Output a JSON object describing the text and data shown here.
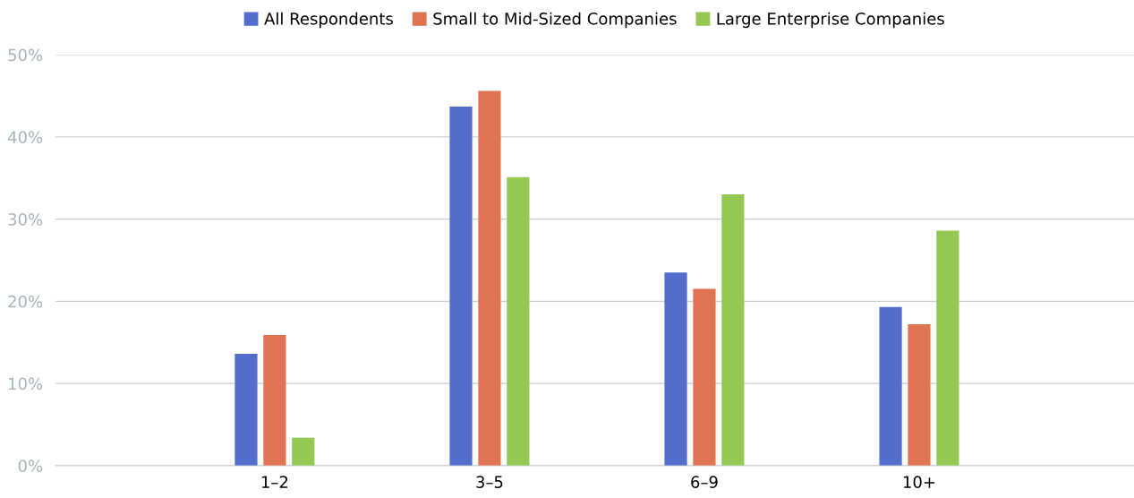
{
  "chart_data": {
    "type": "bar",
    "categories": [
      "1–2",
      "3–5",
      "6–9",
      "10+"
    ],
    "series": [
      {
        "name": "All Respondents",
        "color": "#536dcc",
        "values": [
          13.6,
          43.7,
          23.5,
          19.3
        ]
      },
      {
        "name": "Small to Mid-Sized Companies",
        "color": "#e07352",
        "values": [
          15.9,
          45.6,
          21.5,
          17.2
        ]
      },
      {
        "name": "Large Enterprise Companies",
        "color": "#95c852",
        "values": [
          3.4,
          35.1,
          33.0,
          28.6
        ]
      }
    ],
    "ylim": [
      0,
      50
    ],
    "yticks": [
      {
        "value": 0,
        "label": "0%"
      },
      {
        "value": 10,
        "label": "10%"
      },
      {
        "value": 20,
        "label": "20%"
      },
      {
        "value": 30,
        "label": "30%"
      },
      {
        "value": 40,
        "label": "40%"
      },
      {
        "value": 50,
        "label": "50%"
      }
    ],
    "grid": "y",
    "legend": "top"
  }
}
